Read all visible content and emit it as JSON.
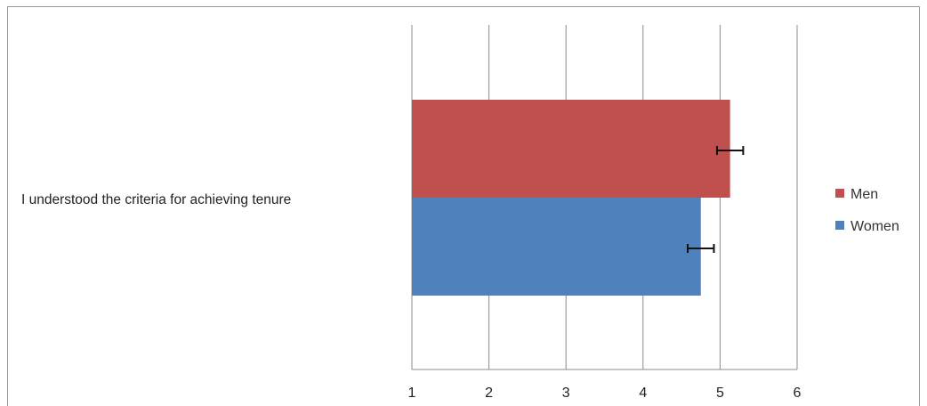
{
  "chart_data": {
    "type": "bar",
    "orientation": "horizontal",
    "categories": [
      "I understood the criteria for achieving tenure"
    ],
    "series": [
      {
        "name": "Men",
        "color": "#C0504D",
        "values": [
          5.13
        ],
        "error": [
          0.17
        ]
      },
      {
        "name": "Women",
        "color": "#4F81BD",
        "values": [
          4.75
        ],
        "error": [
          0.17
        ]
      }
    ],
    "xlim": [
      1,
      6
    ],
    "xticks": [
      "1",
      "2",
      "3",
      "4",
      "5",
      "6"
    ],
    "grid": true,
    "legend_position": "right",
    "xlabel": "",
    "ylabel": "",
    "title": ""
  }
}
